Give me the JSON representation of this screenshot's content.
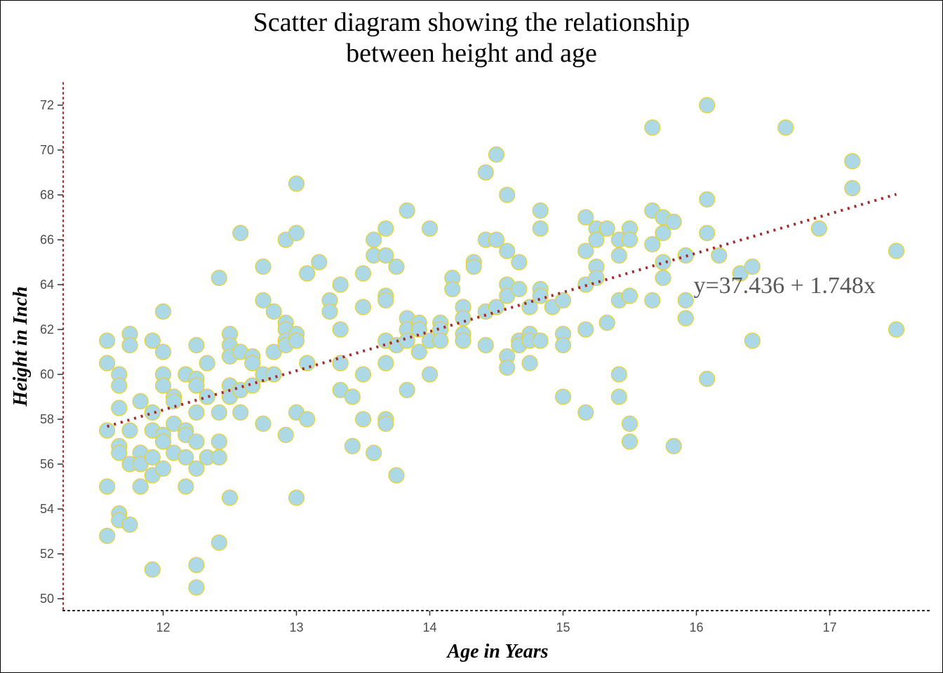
{
  "chart_data": {
    "type": "scatter",
    "title_lines": [
      "Scatter diagram showing the relationship",
      "between height and age"
    ],
    "xlabel": "Age in Years",
    "ylabel": "Height in Inch",
    "xlim": [
      11.25,
      17.75
    ],
    "ylim": [
      49.5,
      73
    ],
    "x_ticks": [
      12,
      13,
      14,
      15,
      16,
      17
    ],
    "y_ticks": [
      50,
      52,
      54,
      56,
      58,
      60,
      62,
      64,
      66,
      68,
      70,
      72
    ],
    "grid": false,
    "point_fill": "#add8e6",
    "point_stroke": "#e6d22e",
    "trend_color": "#a52a2a",
    "axis_line_x_color": "#000000",
    "axis_line_y_color": "#a52a2a",
    "regression": {
      "intercept": 37.436,
      "slope": 1.748,
      "x_range": [
        11.58,
        17.5
      ],
      "label": "y=37.436 + 1.748x",
      "label_at": [
        16.0,
        64
      ]
    },
    "points": [
      [
        11.58,
        61.5
      ],
      [
        11.58,
        60.5
      ],
      [
        11.58,
        57.5
      ],
      [
        11.58,
        55.0
      ],
      [
        11.58,
        52.8
      ],
      [
        11.67,
        60.0
      ],
      [
        11.67,
        59.5
      ],
      [
        11.67,
        58.5
      ],
      [
        11.67,
        56.8
      ],
      [
        11.67,
        56.5
      ],
      [
        11.67,
        53.8
      ],
      [
        11.67,
        53.5
      ],
      [
        11.75,
        61.8
      ],
      [
        11.75,
        61.3
      ],
      [
        11.75,
        57.5
      ],
      [
        11.75,
        56.0
      ],
      [
        11.75,
        53.3
      ],
      [
        11.83,
        58.8
      ],
      [
        11.83,
        56.5
      ],
      [
        11.83,
        56.0
      ],
      [
        11.83,
        55.0
      ],
      [
        11.92,
        61.5
      ],
      [
        11.92,
        58.3
      ],
      [
        11.92,
        57.5
      ],
      [
        11.92,
        56.3
      ],
      [
        11.92,
        55.5
      ],
      [
        11.92,
        51.3
      ],
      [
        12.0,
        62.8
      ],
      [
        12.0,
        61.0
      ],
      [
        12.0,
        60.0
      ],
      [
        12.0,
        59.5
      ],
      [
        12.0,
        57.3
      ],
      [
        12.0,
        57.0
      ],
      [
        12.0,
        55.8
      ],
      [
        12.08,
        59.0
      ],
      [
        12.08,
        58.8
      ],
      [
        12.08,
        57.8
      ],
      [
        12.08,
        56.5
      ],
      [
        12.17,
        60.0
      ],
      [
        12.17,
        57.5
      ],
      [
        12.17,
        57.3
      ],
      [
        12.17,
        56.3
      ],
      [
        12.17,
        55.0
      ],
      [
        12.25,
        61.3
      ],
      [
        12.25,
        59.8
      ],
      [
        12.25,
        59.5
      ],
      [
        12.25,
        58.3
      ],
      [
        12.25,
        57.0
      ],
      [
        12.25,
        55.8
      ],
      [
        12.25,
        51.5
      ],
      [
        12.25,
        50.5
      ],
      [
        12.33,
        60.5
      ],
      [
        12.33,
        59.0
      ],
      [
        12.33,
        56.3
      ],
      [
        12.42,
        64.3
      ],
      [
        12.42,
        58.3
      ],
      [
        12.42,
        57.0
      ],
      [
        12.42,
        56.3
      ],
      [
        12.42,
        52.5
      ],
      [
        12.5,
        61.8
      ],
      [
        12.5,
        61.3
      ],
      [
        12.5,
        60.8
      ],
      [
        12.5,
        59.5
      ],
      [
        12.5,
        59.0
      ],
      [
        12.5,
        54.5
      ],
      [
        12.58,
        66.3
      ],
      [
        12.58,
        61.0
      ],
      [
        12.58,
        59.3
      ],
      [
        12.58,
        58.3
      ],
      [
        12.67,
        60.8
      ],
      [
        12.67,
        60.5
      ],
      [
        12.67,
        59.5
      ],
      [
        12.75,
        64.8
      ],
      [
        12.75,
        63.3
      ],
      [
        12.75,
        60.0
      ],
      [
        12.75,
        57.8
      ],
      [
        12.83,
        62.8
      ],
      [
        12.83,
        61.0
      ],
      [
        12.83,
        60.0
      ],
      [
        12.92,
        66.0
      ],
      [
        12.92,
        62.3
      ],
      [
        12.92,
        62.0
      ],
      [
        12.92,
        61.5
      ],
      [
        12.92,
        61.3
      ],
      [
        12.92,
        57.3
      ],
      [
        13.0,
        68.5
      ],
      [
        13.0,
        66.3
      ],
      [
        13.0,
        61.8
      ],
      [
        13.0,
        61.5
      ],
      [
        13.0,
        58.3
      ],
      [
        13.0,
        54.5
      ],
      [
        13.08,
        64.5
      ],
      [
        13.08,
        60.5
      ],
      [
        13.08,
        58.0
      ],
      [
        13.17,
        65.0
      ],
      [
        13.25,
        63.3
      ],
      [
        13.25,
        62.8
      ],
      [
        13.33,
        64.0
      ],
      [
        13.33,
        62.0
      ],
      [
        13.33,
        60.5
      ],
      [
        13.33,
        59.3
      ],
      [
        13.42,
        59.0
      ],
      [
        13.42,
        56.8
      ],
      [
        13.5,
        64.5
      ],
      [
        13.5,
        63.0
      ],
      [
        13.5,
        60.0
      ],
      [
        13.5,
        58.0
      ],
      [
        13.58,
        66.0
      ],
      [
        13.58,
        65.3
      ],
      [
        13.58,
        56.5
      ],
      [
        13.67,
        66.5
      ],
      [
        13.67,
        65.3
      ],
      [
        13.67,
        63.5
      ],
      [
        13.67,
        63.3
      ],
      [
        13.67,
        61.5
      ],
      [
        13.67,
        60.5
      ],
      [
        13.67,
        58.0
      ],
      [
        13.67,
        57.8
      ],
      [
        13.75,
        64.8
      ],
      [
        13.75,
        61.3
      ],
      [
        13.75,
        55.5
      ],
      [
        13.83,
        67.3
      ],
      [
        13.83,
        62.5
      ],
      [
        13.83,
        62.0
      ],
      [
        13.83,
        61.5
      ],
      [
        13.83,
        59.3
      ],
      [
        13.92,
        62.3
      ],
      [
        13.92,
        62.0
      ],
      [
        13.92,
        61.0
      ],
      [
        14.0,
        66.5
      ],
      [
        14.0,
        61.5
      ],
      [
        14.0,
        60.0
      ],
      [
        14.08,
        62.3
      ],
      [
        14.08,
        62.0
      ],
      [
        14.08,
        61.5
      ],
      [
        14.17,
        64.3
      ],
      [
        14.17,
        63.8
      ],
      [
        14.25,
        63.0
      ],
      [
        14.25,
        62.5
      ],
      [
        14.25,
        61.8
      ],
      [
        14.25,
        61.5
      ],
      [
        14.33,
        65.0
      ],
      [
        14.33,
        64.8
      ],
      [
        14.42,
        69.0
      ],
      [
        14.42,
        66.0
      ],
      [
        14.42,
        62.8
      ],
      [
        14.42,
        61.3
      ],
      [
        14.5,
        69.8
      ],
      [
        14.5,
        66.0
      ],
      [
        14.5,
        63.0
      ],
      [
        14.58,
        68.0
      ],
      [
        14.58,
        65.5
      ],
      [
        14.58,
        64.0
      ],
      [
        14.58,
        63.5
      ],
      [
        14.58,
        60.8
      ],
      [
        14.58,
        60.3
      ],
      [
        14.67,
        65.0
      ],
      [
        14.67,
        63.8
      ],
      [
        14.67,
        61.5
      ],
      [
        14.67,
        61.3
      ],
      [
        14.75,
        63.0
      ],
      [
        14.75,
        61.8
      ],
      [
        14.75,
        61.5
      ],
      [
        14.75,
        60.5
      ],
      [
        14.83,
        67.3
      ],
      [
        14.83,
        66.5
      ],
      [
        14.83,
        63.8
      ],
      [
        14.83,
        63.5
      ],
      [
        14.83,
        61.5
      ],
      [
        14.92,
        63.0
      ],
      [
        15.0,
        63.3
      ],
      [
        15.0,
        61.8
      ],
      [
        15.0,
        61.3
      ],
      [
        15.0,
        59.0
      ],
      [
        15.17,
        67.0
      ],
      [
        15.17,
        65.5
      ],
      [
        15.17,
        64.0
      ],
      [
        15.17,
        62.0
      ],
      [
        15.17,
        58.3
      ],
      [
        15.25,
        66.5
      ],
      [
        15.25,
        66.0
      ],
      [
        15.25,
        64.8
      ],
      [
        15.25,
        64.3
      ],
      [
        15.33,
        66.5
      ],
      [
        15.33,
        62.3
      ],
      [
        15.42,
        66.0
      ],
      [
        15.42,
        65.3
      ],
      [
        15.42,
        63.3
      ],
      [
        15.42,
        60.0
      ],
      [
        15.42,
        59.0
      ],
      [
        15.5,
        66.5
      ],
      [
        15.5,
        66.0
      ],
      [
        15.5,
        63.5
      ],
      [
        15.5,
        57.8
      ],
      [
        15.5,
        57.0
      ],
      [
        15.67,
        71.0
      ],
      [
        15.67,
        67.3
      ],
      [
        15.67,
        65.8
      ],
      [
        15.67,
        63.3
      ],
      [
        15.75,
        67.0
      ],
      [
        15.75,
        66.3
      ],
      [
        15.75,
        65.0
      ],
      [
        15.75,
        64.3
      ],
      [
        15.83,
        66.8
      ],
      [
        15.83,
        56.8
      ],
      [
        15.92,
        65.3
      ],
      [
        15.92,
        63.3
      ],
      [
        15.92,
        62.5
      ],
      [
        16.08,
        72.0
      ],
      [
        16.08,
        67.8
      ],
      [
        16.08,
        66.3
      ],
      [
        16.08,
        59.8
      ],
      [
        16.17,
        65.3
      ],
      [
        16.33,
        64.5
      ],
      [
        16.42,
        64.8
      ],
      [
        16.42,
        61.5
      ],
      [
        16.67,
        71.0
      ],
      [
        16.92,
        66.5
      ],
      [
        17.17,
        69.5
      ],
      [
        17.17,
        68.3
      ],
      [
        17.5,
        65.5
      ],
      [
        17.5,
        62.0
      ]
    ]
  }
}
